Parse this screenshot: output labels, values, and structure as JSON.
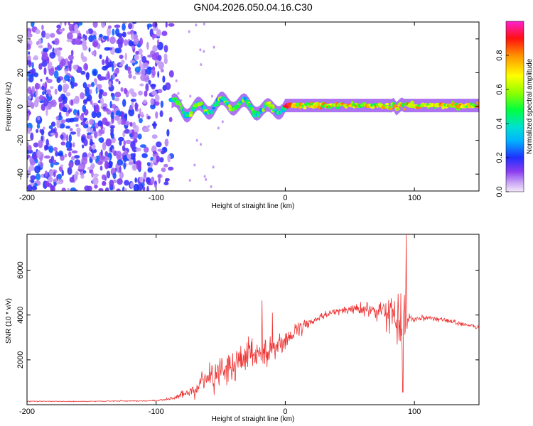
{
  "title": "GN04.2026.050.04.16.C30",
  "chart_data": [
    {
      "type": "heatmap",
      "xlabel": "Height of straight line (km)",
      "ylabel": "Frequency (Hz)",
      "xlim": [
        -200,
        150
      ],
      "ylim": [
        -50,
        50
      ],
      "xticks": [
        "-200",
        "-100",
        "0",
        "100"
      ],
      "yticks": [
        "40",
        "20",
        "0",
        "-20",
        "-40"
      ],
      "colorbar": {
        "label": "Normalized spectral amplitude",
        "range": [
          0,
          1
        ],
        "ticks": [
          "0.0",
          "0.2",
          "0.4",
          "0.6",
          "0.8"
        ]
      },
      "regions": [
        {
          "kind": "noise",
          "x": [
            -200,
            -88
          ],
          "y": [
            -50,
            50
          ],
          "amplitude": [
            0.05,
            0.25
          ]
        },
        {
          "kind": "signal-band",
          "x": [
            -88,
            150
          ],
          "center_hz": 0,
          "halfwidth_hz": 3,
          "amplitude": [
            0.2,
            1.0
          ]
        }
      ]
    },
    {
      "type": "line",
      "xlabel": "Height of straight line (km)",
      "ylabel": "SNR (10 * v/v)",
      "xlim": [
        -200,
        150
      ],
      "ylim": [
        0,
        7600
      ],
      "xticks": [
        "-200",
        "-100",
        "0",
        "100"
      ],
      "yticks": [
        "2000",
        "4000",
        "6000"
      ],
      "series": [
        {
          "color": "#ee3333",
          "x": [
            -200,
            -150,
            -100,
            -85,
            -70,
            -60,
            -50,
            -40,
            -30,
            -20,
            -10,
            0,
            10,
            20,
            30,
            40,
            50,
            60,
            70,
            80,
            85,
            90,
            93,
            95,
            100,
            110,
            120,
            130,
            140,
            150
          ],
          "y": [
            150,
            150,
            180,
            300,
            700,
            1300,
            1500,
            1700,
            2000,
            2300,
            2500,
            2900,
            3300,
            3700,
            4000,
            4150,
            4250,
            4250,
            4200,
            4100,
            4000,
            3900,
            3900,
            3900,
            3850,
            3900,
            3800,
            3700,
            3550,
            3450
          ],
          "noise": [
            20,
            20,
            30,
            80,
            400,
            800,
            900,
            900,
            900,
            900,
            800,
            500,
            350,
            250,
            200,
            180,
            250,
            350,
            450,
            800,
            1100,
            1500,
            1800,
            300,
            150,
            150,
            120,
            110,
            100,
            100
          ],
          "peaks": [
            [
              -18,
              4650
            ],
            [
              -10,
              4100
            ],
            [
              93.5,
              7600
            ],
            [
              91,
              560
            ]
          ]
        }
      ]
    }
  ]
}
